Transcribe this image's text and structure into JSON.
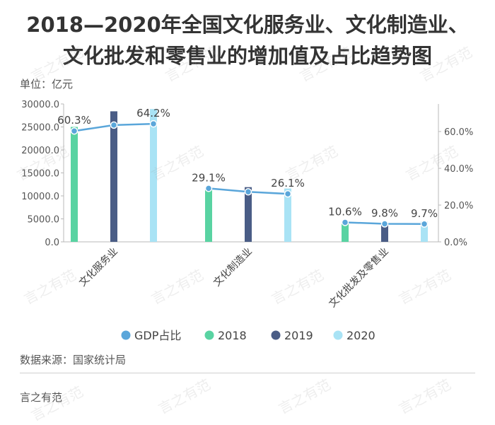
{
  "title_lines": [
    "2018—2020年全国文化服务业、文化制造业、",
    "文化批发和零售业的增加值及占比趋势图"
  ],
  "unit_label": "单位：亿元",
  "source": "数据来源：国家统计局",
  "footer": "言之有范",
  "watermark_text": "言之有范",
  "colors": {
    "2018": "#59d3a2",
    "2019": "#4a5d86",
    "2020": "#a9e3f5",
    "line": "#5aa6da"
  },
  "chart_data": {
    "type": "bar",
    "categories": [
      "文化服务业",
      "文化制造业",
      "文化批发及零售业"
    ],
    "series": [
      {
        "name": "2018",
        "values": [
          25000,
          11900,
          4300
        ]
      },
      {
        "name": "2019",
        "values": [
          28400,
          11900,
          3800
        ]
      },
      {
        "name": "2020",
        "values": [
          28900,
          11600,
          4400
        ]
      }
    ],
    "line_series": {
      "name": "GDP占比",
      "values": [
        60.3,
        63.5,
        64.2,
        29.1,
        27.2,
        26.1,
        10.6,
        9.8,
        9.7
      ]
    },
    "line_labels": [
      "60.3%",
      "",
      "64.2%",
      "29.1%",
      "",
      "26.1%",
      "10.6%",
      "9.8%",
      "9.7%"
    ],
    "ylim_left": [
      0,
      30000
    ],
    "left_ticks": [
      "0.0",
      "5000.0",
      "10000.0",
      "15000.0",
      "20000.0",
      "25000.0",
      "30000.0"
    ],
    "ylim_right": [
      0,
      75
    ],
    "right_ticks": [
      "0.0%",
      "20.0%",
      "40.0%",
      "60.0%"
    ],
    "legend": [
      "GDP占比",
      "2018",
      "2019",
      "2020"
    ],
    "legend_position": "bottom"
  }
}
